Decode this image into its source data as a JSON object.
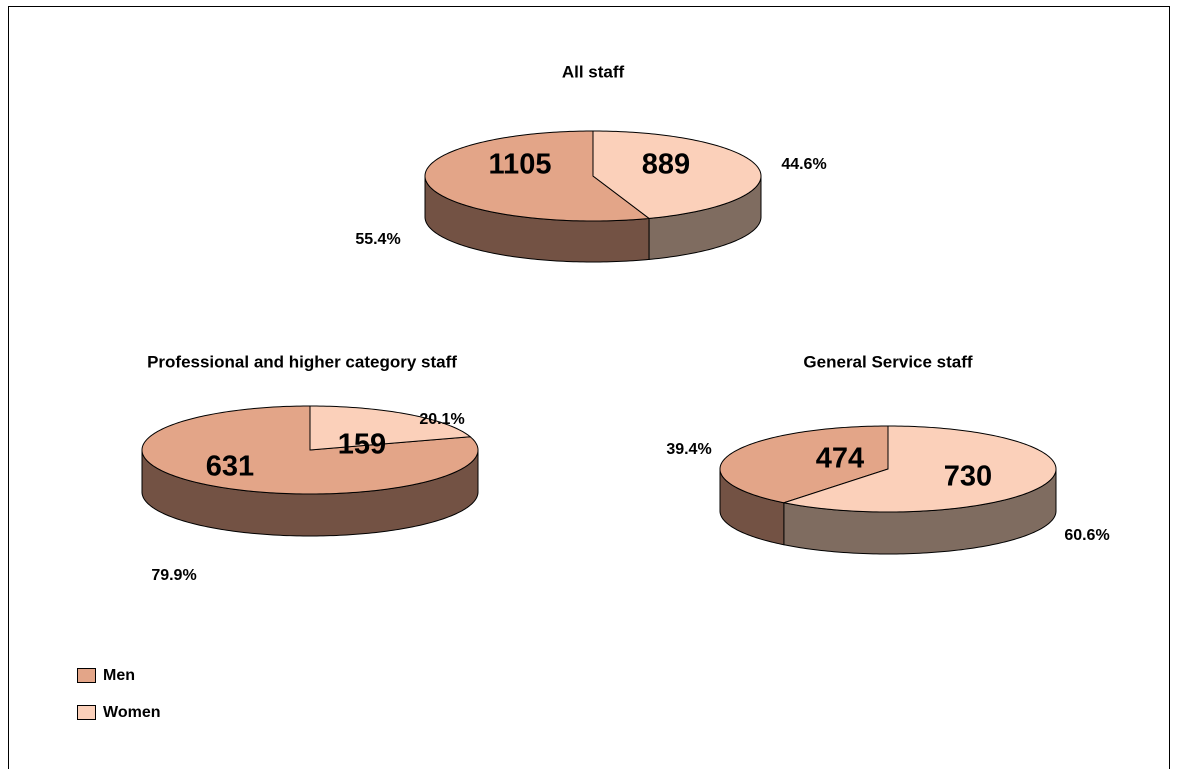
{
  "chart_data": [
    {
      "type": "pie",
      "title": "All staff",
      "categories": [
        "Men",
        "Women"
      ],
      "values": [
        1105,
        889
      ],
      "percent_labels": [
        "55.4%",
        "44.6%"
      ],
      "colors": [
        "#e3a588",
        "#fbd0ba"
      ],
      "side_colors": [
        "#735244",
        "#7f6c60"
      ],
      "legend": "bottom-left"
    },
    {
      "type": "pie",
      "title": "Professional and higher category staff",
      "categories": [
        "Men",
        "Women"
      ],
      "values": [
        631,
        159
      ],
      "percent_labels": [
        "79.9%",
        "20.1%"
      ],
      "colors": [
        "#e3a588",
        "#fbd0ba"
      ],
      "side_colors": [
        "#735244",
        "#7f6c60"
      ]
    },
    {
      "type": "pie",
      "title": "General Service staff",
      "categories": [
        "Men",
        "Women"
      ],
      "values": [
        474,
        730
      ],
      "percent_labels": [
        "39.4%",
        "60.6%"
      ],
      "colors": [
        "#e3a588",
        "#fbd0ba"
      ],
      "side_colors": [
        "#735244",
        "#7f6c60"
      ]
    }
  ]
}
